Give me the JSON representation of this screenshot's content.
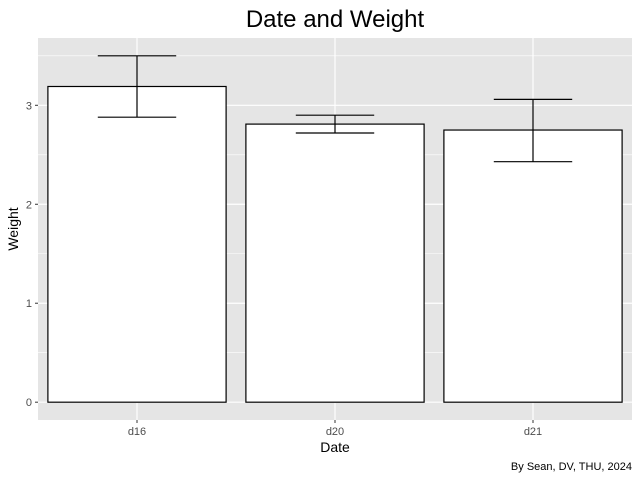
{
  "chart_data": {
    "type": "bar",
    "title": "Date and Weight",
    "xlabel": "Date",
    "ylabel": "Weight",
    "caption": "By Sean, DV, THU, 2024",
    "categories": [
      "d16",
      "d20",
      "d21"
    ],
    "values": [
      3.19,
      2.81,
      2.75
    ],
    "error_bars": {
      "lower": [
        2.88,
        2.72,
        2.43
      ],
      "upper": [
        3.5,
        2.9,
        3.06
      ]
    },
    "ylim": [
      -0.18,
      3.68
    ],
    "yticks": [
      0,
      1,
      2,
      3
    ],
    "grid": true,
    "legend": "none",
    "colors": {
      "panel_background": "#e5e5e5",
      "grid_major": "#ffffff",
      "bar_fill": "#ffffff",
      "bar_stroke": "#000000",
      "error_bar": "#000000"
    }
  }
}
